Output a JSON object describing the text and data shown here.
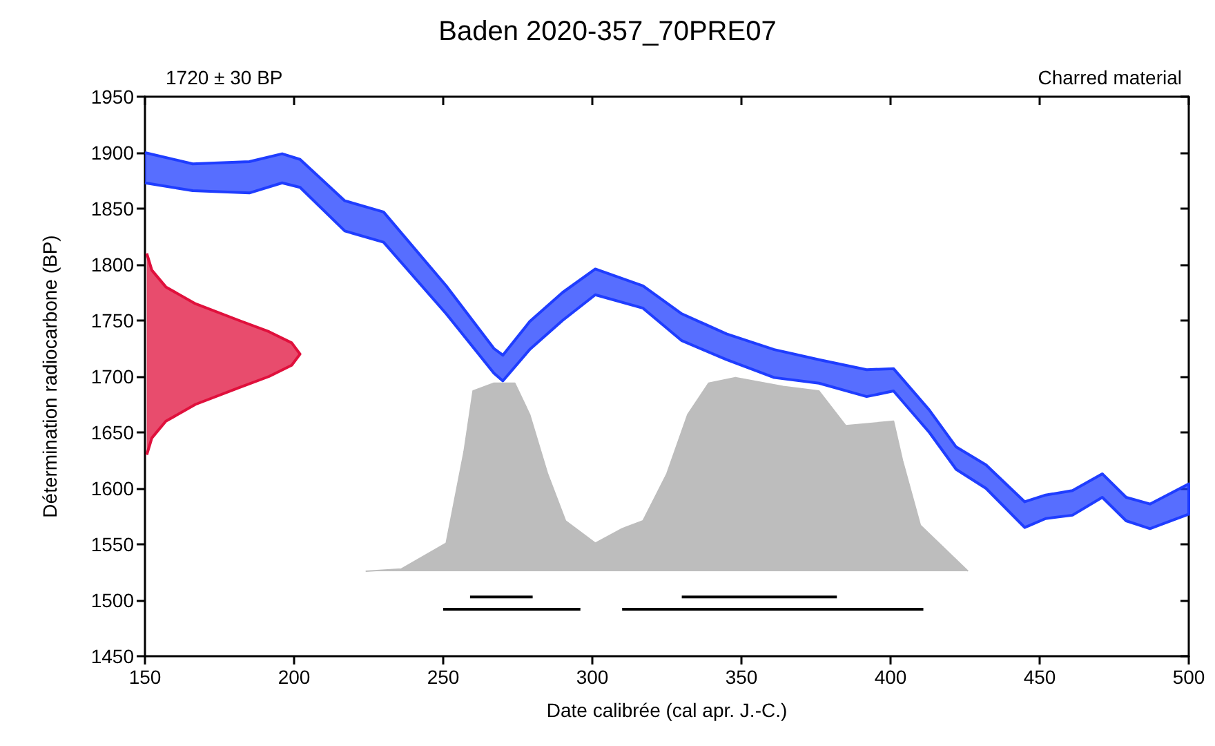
{
  "chart_data": {
    "type": "area",
    "title": "Baden 2020-357_70PRE07",
    "annotations": [
      "1720 ± 30 BP",
      "Charred material"
    ],
    "xlabel": "Date calibrée (cal apr. J.-C.)",
    "ylabel": "Détermination radiocarbone (BP)",
    "xlim": [
      150,
      500
    ],
    "xticks": [
      150,
      200,
      250,
      300,
      350,
      400,
      450,
      500
    ],
    "ylim": [
      1450,
      1950
    ],
    "yticks": [
      1450,
      1500,
      1550,
      1600,
      1650,
      1700,
      1750,
      1800,
      1850,
      1900,
      1950
    ],
    "grid": false,
    "series": [
      {
        "color": "#1f3dff",
        "line_style": "solid",
        "x": [
          150,
          166,
          185,
          196,
          202,
          217,
          230,
          251,
          267,
          270,
          279,
          290,
          301,
          317,
          330,
          345,
          361,
          376,
          392,
          401,
          413,
          422,
          432,
          445,
          452,
          461,
          471,
          479,
          487,
          500,
          500,
          487,
          479,
          471,
          461,
          452,
          445,
          432,
          422,
          413,
          401,
          392,
          376,
          361,
          345,
          330,
          317,
          301,
          290,
          279,
          270,
          267,
          251,
          230,
          217,
          202,
          196,
          185,
          166,
          150
        ],
        "values": [
          1900,
          1890,
          1892,
          1899,
          1894,
          1857,
          1847,
          1781,
          1725,
          1719,
          1749,
          1775,
          1796,
          1781,
          1756,
          1738,
          1724,
          1715,
          1706,
          1707,
          1670,
          1637,
          1621,
          1588,
          1594,
          1598,
          1613,
          1592,
          1586,
          1604,
          1577,
          1564,
          1571,
          1592,
          1576,
          1573,
          1565,
          1600,
          1617,
          1650,
          1687,
          1682,
          1694,
          1699,
          1715,
          1732,
          1761,
          1773,
          1750,
          1724,
          1696,
          1703,
          1756,
          1820,
          1830,
          1869,
          1873,
          1864,
          1866,
          1873
        ]
      },
      {
        "color": "#e0103c",
        "line_style": "solid",
        "x": [
          150.6,
          152.3,
          157,
          166.9,
          181.6,
          191.6,
          199.2,
          202,
          199.2,
          191.6,
          181.6,
          166.9,
          157,
          152.3,
          150.6
        ],
        "values": [
          1810,
          1795,
          1780,
          1765,
          1750,
          1740,
          1730,
          1720,
          1710,
          1700,
          1690,
          1675,
          1660,
          1645,
          1630
        ]
      },
      {
        "color": "#bdbdbd",
        "x": [
          224,
          236,
          251,
          257,
          260,
          267,
          274,
          279,
          285,
          291,
          301,
          310,
          317,
          325,
          332,
          339,
          348,
          364,
          376,
          385,
          401,
          404,
          410,
          426
        ],
        "values": [
          1526,
          1528,
          1551,
          1633,
          1687,
          1694,
          1694,
          1666,
          1613,
          1571,
          1551,
          1564,
          1571,
          1613,
          1666,
          1694,
          1699,
          1691,
          1687,
          1656,
          1660,
          1625,
          1567,
          1526
        ]
      },
      {
        "type": "line",
        "color": "#000000",
        "x": [
          259,
          280
        ],
        "values": [
          1503,
          1503
        ]
      },
      {
        "type": "line",
        "color": "#000000",
        "x": [
          330,
          382
        ],
        "values": [
          1503,
          1503
        ]
      },
      {
        "type": "line",
        "color": "#000000",
        "x": [
          250,
          296
        ],
        "values": [
          1492,
          1492
        ]
      },
      {
        "type": "line",
        "color": "#000000",
        "x": [
          310,
          411
        ],
        "values": [
          1492,
          1492
        ]
      }
    ]
  }
}
